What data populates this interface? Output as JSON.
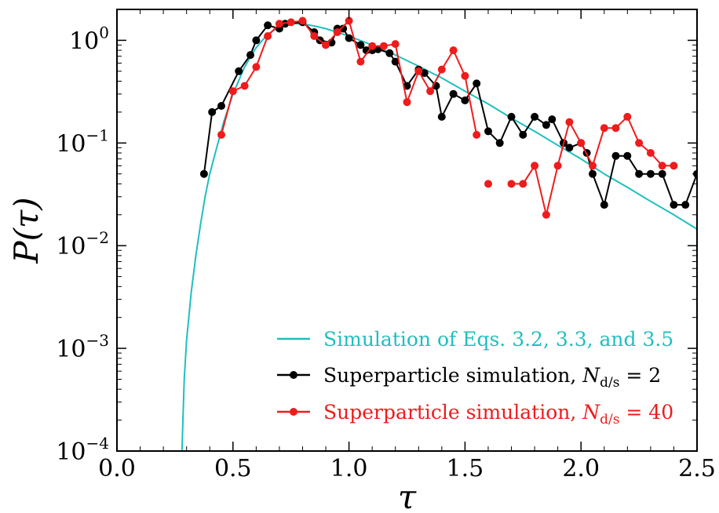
{
  "chart_data": {
    "type": "line",
    "xlabel": "τ",
    "ylabel": "P(τ)",
    "xlim": [
      0.0,
      2.5
    ],
    "ylim": [
      0.0001,
      2.0
    ],
    "yscale": "log",
    "xticks": [
      0.0,
      0.5,
      1.0,
      1.5,
      2.0,
      2.5
    ],
    "xtick_labels": [
      "0.0",
      "0.5",
      "1.0",
      "1.5",
      "2.0",
      "2.5"
    ],
    "yticks": [
      0.0001,
      0.001,
      0.01,
      0.1,
      1.0
    ],
    "ytick_labels": [
      {
        "base": "10",
        "exp": "−4"
      },
      {
        "base": "10",
        "exp": "−3"
      },
      {
        "base": "10",
        "exp": "−2"
      },
      {
        "base": "10",
        "exp": "−1"
      },
      {
        "base": "10",
        "exp": "0"
      }
    ],
    "grid": false,
    "legend_position": "bottom-right",
    "series": [
      {
        "name": "Simulation of Eqs. 3.2, 3.3, and 3.5",
        "color": "#1fbfbf",
        "marker": "none",
        "x": [
          0.28,
          0.29,
          0.3,
          0.32,
          0.34,
          0.36,
          0.38,
          0.4,
          0.43,
          0.46,
          0.5,
          0.55,
          0.6,
          0.65,
          0.7,
          0.75,
          0.8,
          0.85,
          0.9,
          1.0,
          1.1,
          1.2,
          1.3,
          1.4,
          1.5,
          1.6,
          1.7,
          1.8,
          1.9,
          2.0,
          2.1,
          2.2,
          2.3,
          2.4,
          2.5
        ],
        "y": [
          0.0001,
          0.0005,
          0.0012,
          0.0035,
          0.008,
          0.016,
          0.03,
          0.05,
          0.09,
          0.16,
          0.3,
          0.55,
          0.85,
          1.15,
          1.35,
          1.45,
          1.45,
          1.38,
          1.3,
          1.1,
          0.9,
          0.72,
          0.56,
          0.43,
          0.32,
          0.24,
          0.175,
          0.13,
          0.095,
          0.07,
          0.05,
          0.037,
          0.027,
          0.02,
          0.0145
        ]
      },
      {
        "name": "Superparticle simulation, N_d/s = 2",
        "color": "#000000",
        "marker": "circle",
        "x": [
          0.375,
          0.41,
          0.45,
          0.525,
          0.575,
          0.6,
          0.65,
          0.7,
          0.725,
          0.8,
          0.85,
          0.875,
          0.925,
          0.95,
          0.975,
          1.0,
          1.05,
          1.075,
          1.1,
          1.125,
          1.175,
          1.2,
          1.25,
          1.3,
          1.325,
          1.375,
          1.4,
          1.45,
          1.5,
          1.55,
          1.6,
          1.65,
          1.7,
          1.75,
          1.8,
          1.85,
          1.875,
          1.925,
          1.95,
          2.0,
          2.025,
          2.05,
          2.1,
          2.15,
          2.2,
          2.25,
          2.3,
          2.35,
          2.4,
          2.45,
          2.5
        ],
        "y": [
          0.05,
          0.2,
          0.23,
          0.5,
          0.72,
          1.0,
          1.4,
          1.3,
          1.45,
          1.5,
          1.2,
          1.0,
          0.95,
          1.3,
          1.3,
          1.05,
          0.9,
          0.8,
          0.8,
          0.82,
          0.75,
          0.62,
          0.36,
          0.52,
          0.48,
          0.36,
          0.18,
          0.3,
          0.26,
          0.38,
          0.13,
          0.1,
          0.18,
          0.12,
          0.18,
          0.15,
          0.17,
          0.1,
          0.09,
          0.1,
          0.08,
          0.05,
          0.025,
          0.075,
          0.075,
          0.05,
          0.05,
          0.05,
          0.025,
          0.025,
          0.05
        ]
      },
      {
        "name": "Superparticle simulation, N_d/s = 40",
        "color": "#ee1c1c",
        "marker": "circle",
        "x": [
          0.45,
          0.5,
          0.55,
          0.6,
          0.65,
          0.7,
          0.75,
          0.8,
          0.85,
          0.9,
          0.95,
          1.0,
          1.05,
          1.1,
          1.15,
          1.2,
          1.25,
          1.3,
          1.35,
          1.4,
          1.45,
          1.5,
          1.55,
          null,
          1.6,
          null,
          1.7,
          1.75,
          1.8,
          1.85,
          1.9,
          1.95,
          2.0,
          2.05,
          2.1,
          2.15,
          2.2,
          2.25,
          2.3,
          2.35,
          2.4
        ],
        "y": [
          0.12,
          0.32,
          0.36,
          0.55,
          1.1,
          1.45,
          1.5,
          1.55,
          1.1,
          0.9,
          1.2,
          1.55,
          0.62,
          0.88,
          0.88,
          0.92,
          0.25,
          0.5,
          0.32,
          0.52,
          0.8,
          0.45,
          0.12,
          null,
          0.04,
          null,
          0.04,
          0.04,
          0.06,
          0.02,
          0.06,
          0.16,
          0.1,
          0.06,
          0.14,
          0.14,
          0.18,
          0.1,
          0.08,
          0.06,
          0.06
        ]
      }
    ]
  },
  "legend": [
    {
      "text": "Simulation of Eqs. 3.2, 3.3, and 3.5",
      "color": "#1fbfbf"
    },
    {
      "text": "Superparticle simulation, ",
      "math": "N",
      "sub": "d/s",
      "value": " = 2",
      "color": "#000000"
    },
    {
      "text": "Superparticle simulation, ",
      "math": "N",
      "sub": "d/s",
      "value": " = 40",
      "color": "#ee1c1c"
    }
  ]
}
